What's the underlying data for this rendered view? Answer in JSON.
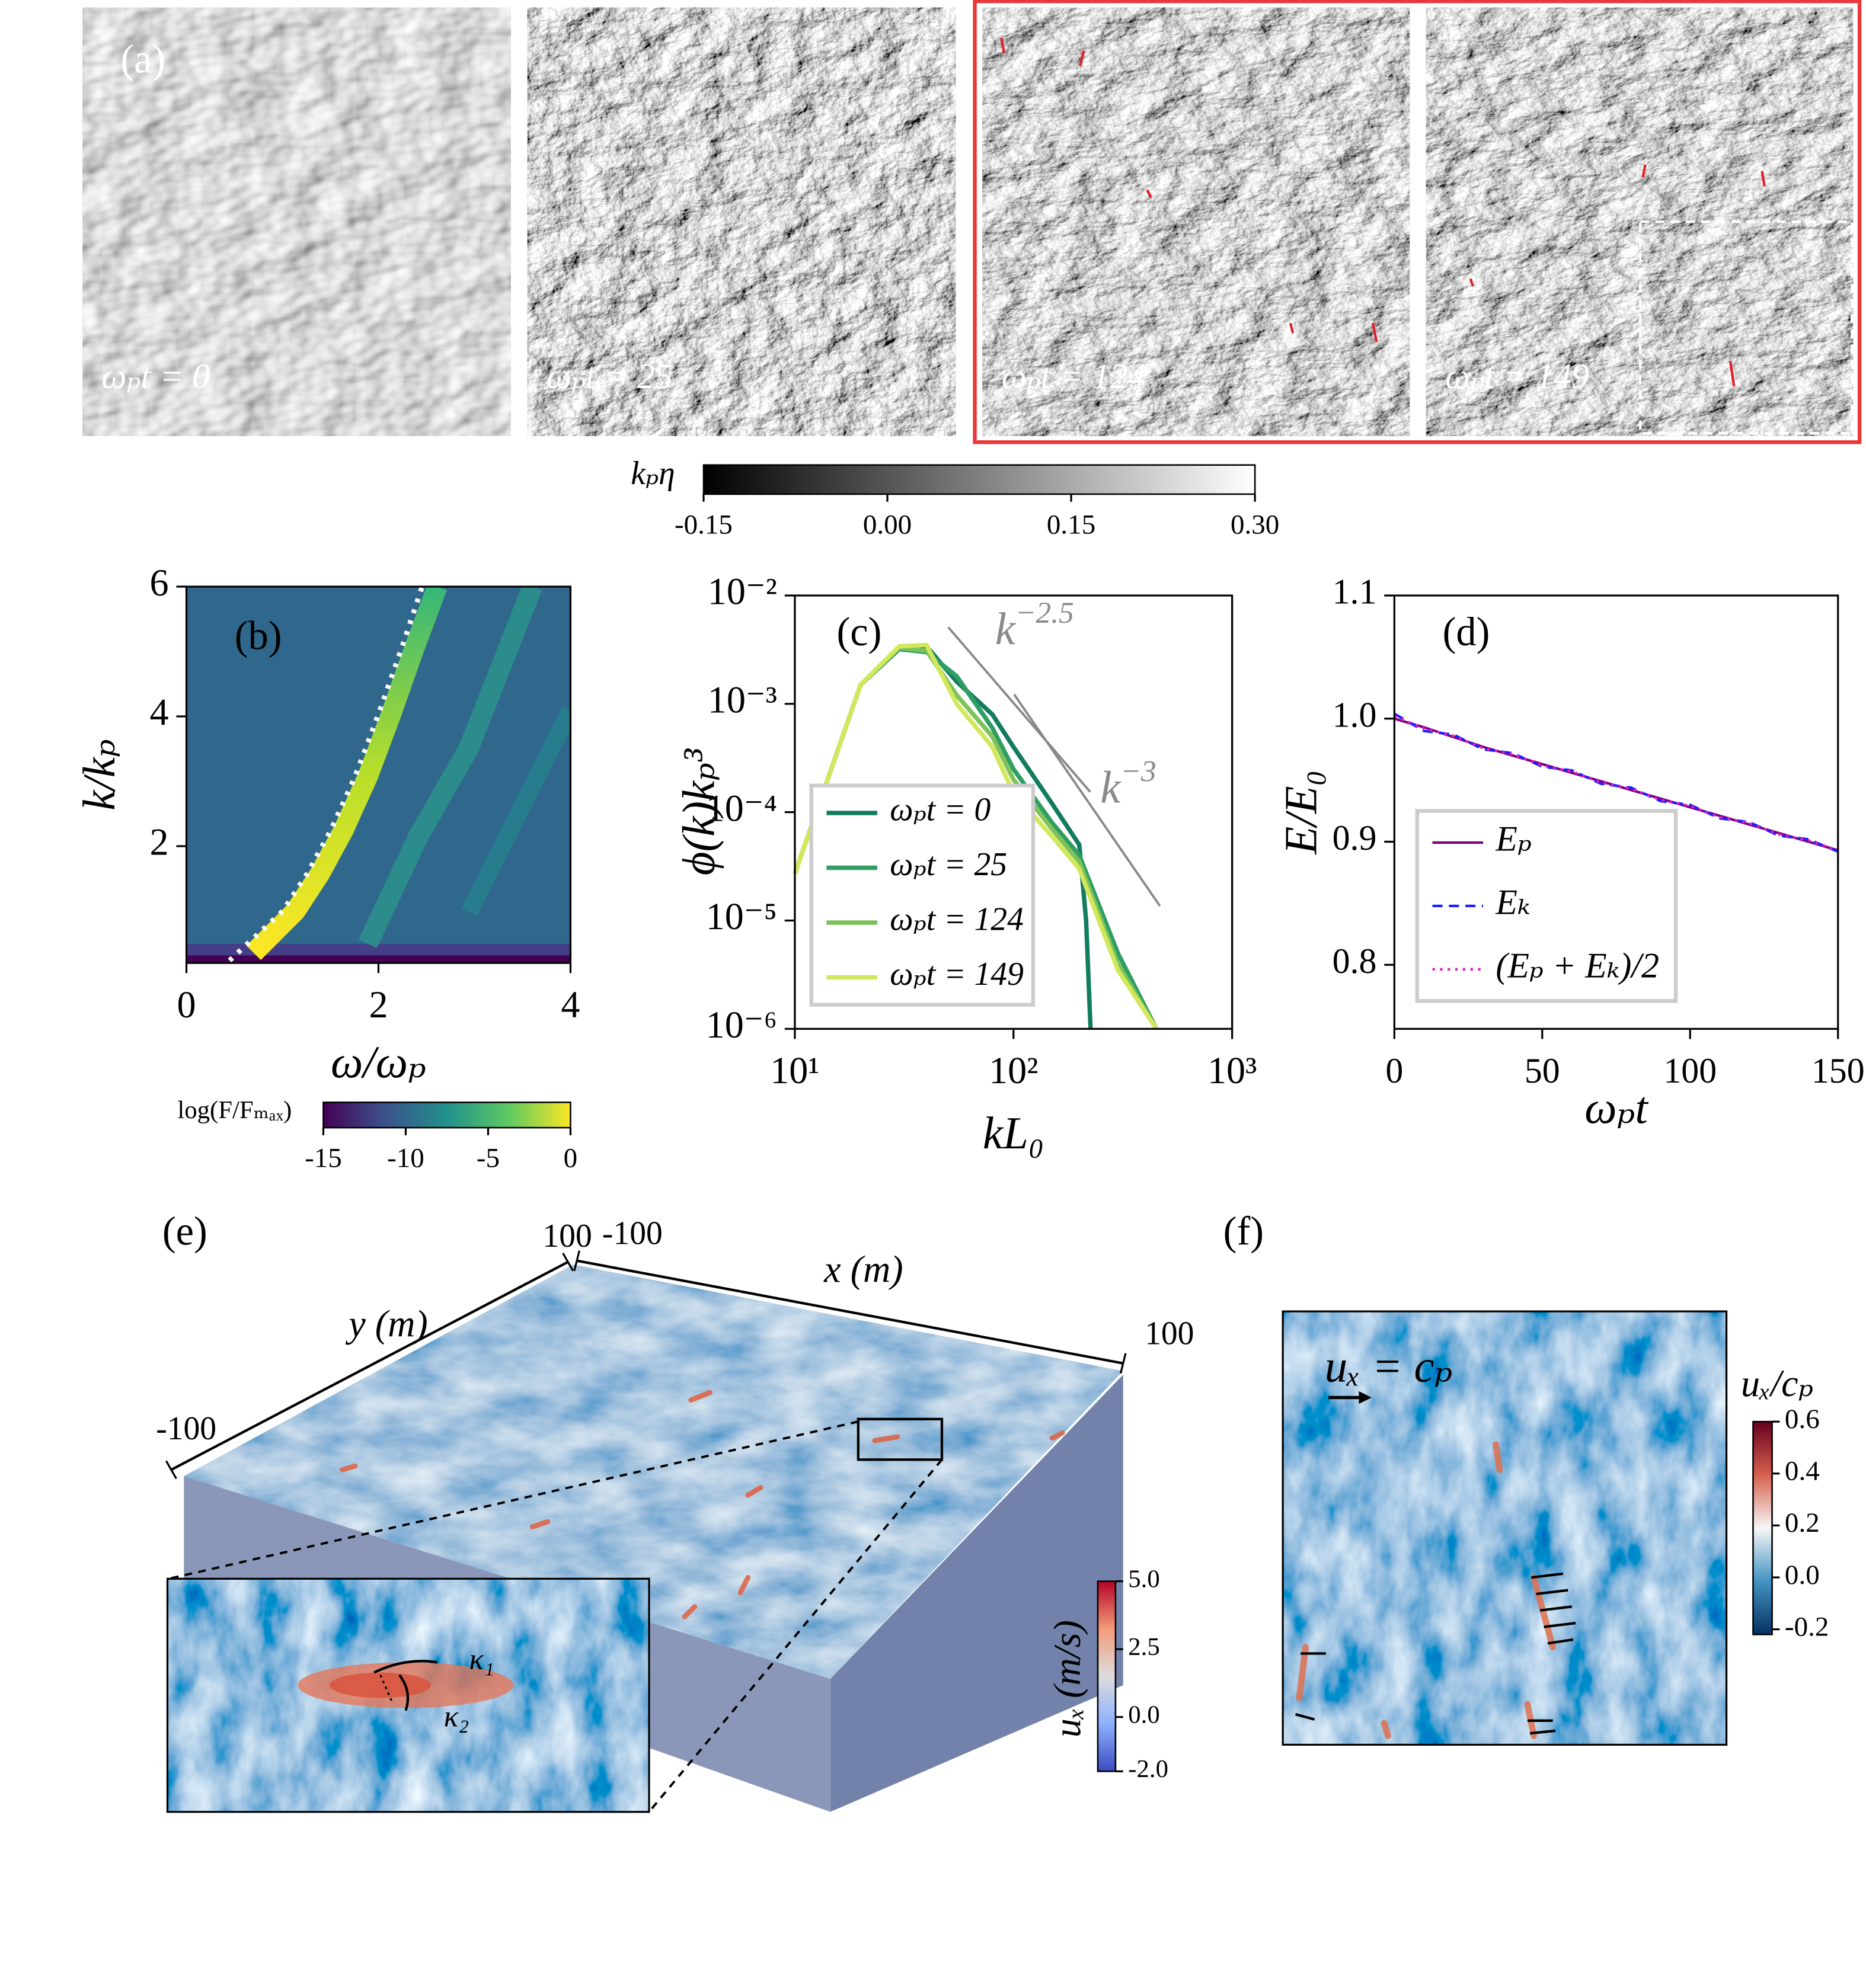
{
  "chart_data": [
    {
      "type": "image-grid",
      "label": "(a)",
      "panels": [
        {
          "time": "ωₚt = 0"
        },
        {
          "time": "ωₚt = 25"
        },
        {
          "time": "ωₚt = 124"
        },
        {
          "time": "ωₚt = 149"
        }
      ],
      "colorbar": {
        "label": "kₚη",
        "colormap": "gray",
        "lim": [
          -0.15,
          0.3
        ],
        "ticks": [
          -0.15,
          {
            "value": 0,
            "label": "0.00"
          },
          0.15,
          {
            "value": 0.3,
            "label": "0.30"
          }
        ]
      }
    },
    {
      "type": "heatmap",
      "label": "(b)",
      "xlabel": "ω/ωₚ",
      "ylabel": "k/kₚ",
      "xlim": [
        0,
        4
      ],
      "ylim": [
        0.2,
        6
      ],
      "xticks": [
        0,
        2,
        4
      ],
      "yticks": [
        2,
        4,
        6
      ],
      "colorbar": {
        "label": "log(F/Fₘₐₓ)",
        "colormap": "viridis",
        "lim": [
          -15,
          0
        ],
        "ticks": [
          -15,
          -10,
          -5,
          0
        ]
      }
    },
    {
      "type": "line",
      "label": "(c)",
      "xlabel": "kL₀",
      "ylabel": "ϕ(k)kₚ³",
      "xscale": "log",
      "yscale": "log",
      "xlim": [
        10,
        1000
      ],
      "ylim": [
        1e-06,
        0.01
      ],
      "xticks": [
        {
          "value": 10,
          "label": "10¹"
        },
        {
          "value": 100,
          "label": "10²"
        },
        {
          "value": 1000,
          "label": "10³"
        }
      ],
      "yticks": [
        {
          "value": 1e-06,
          "label": "10⁻⁶"
        },
        {
          "value": 1e-05,
          "label": "10⁻⁵"
        },
        {
          "value": 0.0001,
          "label": "10⁻⁴"
        },
        {
          "value": 0.001,
          "label": "10⁻³"
        },
        {
          "value": 0.01,
          "label": "10⁻²"
        }
      ],
      "legend": "lower left",
      "series": [
        {
          "name": "ωₚt = 0",
          "color": "#137c5f",
          "style": "solid",
          "x": [
            10,
            20,
            30,
            40,
            55,
            80,
            100,
            150,
            200,
            215,
            225
          ],
          "values": [
            2.7e-05,
            0.0015,
            0.0032,
            0.0034,
            0.0016,
            0.0008,
            0.0004,
            0.00012,
            5e-05,
            1e-05,
            1e-06
          ]
        },
        {
          "name": "ωₚt = 25",
          "color": "#2e9e63",
          "style": "solid",
          "x": [
            10,
            20,
            30,
            40,
            55,
            80,
            100,
            150,
            200,
            300,
            450
          ],
          "values": [
            2.7e-05,
            0.0015,
            0.0032,
            0.003,
            0.0018,
            0.0006,
            0.00025,
            8e-05,
            4e-05,
            5e-06,
            1e-06
          ]
        },
        {
          "name": "ωₚt = 124",
          "color": "#7fc25a",
          "style": "solid",
          "x": [
            10,
            20,
            30,
            40,
            55,
            80,
            100,
            150,
            200,
            300,
            450
          ],
          "values": [
            2.7e-05,
            0.0015,
            0.0033,
            0.0031,
            0.0012,
            0.0005,
            0.0002,
            7e-05,
            3.5e-05,
            4e-06,
            1e-06
          ]
        },
        {
          "name": "ωₚt = 149",
          "color": "#d2e85c",
          "style": "solid",
          "x": [
            10,
            20,
            30,
            40,
            55,
            80,
            100,
            150,
            200,
            300,
            450
          ],
          "values": [
            2.7e-05,
            0.0015,
            0.0034,
            0.0035,
            0.001,
            0.0004,
            0.00015,
            6e-05,
            3e-05,
            3.5e-06,
            1e-06
          ]
        }
      ],
      "annotations": [
        {
          "base": "k",
          "exponent": "−2.5"
        },
        {
          "base": "k",
          "exponent": "−3"
        }
      ]
    },
    {
      "type": "line",
      "label": "(d)",
      "xlabel": "ωₚt",
      "ylabel": "E/E₀",
      "xlim": [
        0,
        150
      ],
      "ylim": [
        0.748,
        1.1
      ],
      "xticks": [
        0,
        50,
        100,
        150
      ],
      "yticks": [
        0.8,
        0.9,
        {
          "value": 1,
          "label": "1.0"
        },
        1.1
      ],
      "legend": "lower left",
      "x": [
        0,
        10,
        20,
        30,
        40,
        50,
        60,
        70,
        80,
        90,
        100,
        110,
        120,
        130,
        140,
        150
      ],
      "series": [
        {
          "name": "Eₚ",
          "color": "#800080",
          "style": "solid",
          "values": [
            1.0,
            0.993,
            0.985,
            0.977,
            0.97,
            0.963,
            0.956,
            0.949,
            0.942,
            0.935,
            0.928,
            0.921,
            0.914,
            0.907,
            0.9,
            0.893
          ]
        },
        {
          "name": "Eₖ",
          "color": "#2020ff",
          "style": "dashed",
          "values": [
            1.004,
            0.99,
            0.987,
            0.975,
            0.972,
            0.961,
            0.958,
            0.947,
            0.944,
            0.933,
            0.93,
            0.919,
            0.916,
            0.905,
            0.902,
            0.892
          ]
        },
        {
          "name": "(Eₚ + Eₖ)/2",
          "color": "#e020c0",
          "style": "dotted",
          "values": [
            1.002,
            0.992,
            0.986,
            0.976,
            0.971,
            0.962,
            0.957,
            0.948,
            0.943,
            0.934,
            0.929,
            0.92,
            0.915,
            0.906,
            0.901,
            0.893
          ]
        }
      ]
    },
    {
      "type": "surface-3d",
      "label": "(e)",
      "xlabel": "x (m)",
      "ylabel": "y (m)",
      "xticks": [
        -100,
        100
      ],
      "yticks": [
        -100,
        100
      ],
      "inset": [
        "κ₁",
        "κ₂"
      ],
      "colorbar": {
        "label": "uₓ (m/s)",
        "colormap": "coolwarm",
        "lim": [
          -2,
          5
        ],
        "ticks": [
          {
            "value": -2,
            "label": "-2.0"
          },
          {
            "value": 0,
            "label": "0.0"
          },
          2.5,
          {
            "value": 5,
            "label": "5.0"
          }
        ]
      }
    },
    {
      "type": "vector-map",
      "label": "(f)",
      "annotation": "uₓ = cₚ",
      "colorbar": {
        "label": "uₓ/cₚ",
        "colormap": "RdBu_r",
        "lim": [
          -0.22,
          0.6
        ],
        "ticks": [
          -0.2,
          {
            "value": 0,
            "label": "0.0"
          },
          0.2,
          0.4,
          0.6
        ]
      }
    }
  ]
}
